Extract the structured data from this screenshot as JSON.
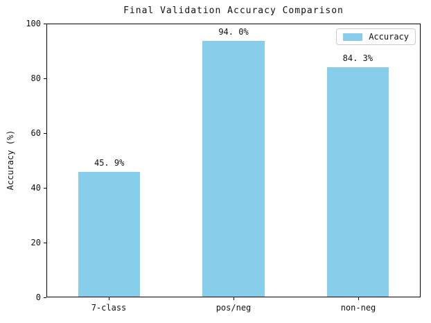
{
  "chart_data": {
    "type": "bar",
    "title": "Final Validation Accuracy Comparison",
    "categories": [
      "7-class",
      "pos/neg",
      "non-neg"
    ],
    "values": [
      45.9,
      94.0,
      84.3
    ],
    "value_labels": [
      "45. 9%",
      "94. 0%",
      "84. 3%"
    ],
    "xlabel": "",
    "ylabel": "Accuracy (%)",
    "ylim": [
      0,
      100
    ],
    "yticks": [
      0,
      20,
      40,
      60,
      80,
      100
    ],
    "grid": false,
    "legend": {
      "label": "Accuracy",
      "position": "upper right"
    },
    "colors": {
      "bar": "#87CEEB",
      "axis": "#000000",
      "text": "#111111",
      "legend_border": "#cccccc",
      "background": "#ffffff"
    }
  }
}
